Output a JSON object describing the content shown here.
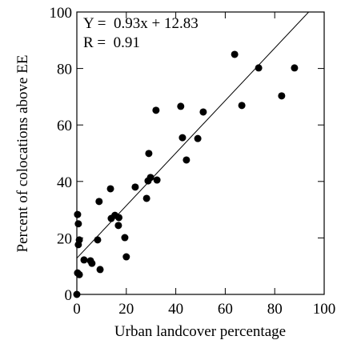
{
  "chart_data": {
    "type": "scatter",
    "xlabel": "Urban landcover percentage",
    "ylabel": "Percent of colocations above EE",
    "annotations": [
      "Y =  0.93x + 12.83",
      "R =  0.91"
    ],
    "fit": {
      "slope": 0.93,
      "intercept": 12.83
    },
    "color": "#000000",
    "x": [
      0.3,
      0.6,
      1,
      0.6,
      0.3,
      1,
      0,
      2.9,
      5.5,
      6.1,
      9,
      8.4,
      9.4,
      13.6,
      13.9,
      15.4,
      17,
      16.8,
      19.4,
      20,
      23.6,
      28.2,
      28.8,
      29.1,
      29.8,
      32.4,
      32,
      42,
      42.7,
      44.3,
      48.9,
      51.1,
      63.8,
      66.7,
      73.5,
      82.8,
      88
    ],
    "y": [
      28.3,
      25,
      19.3,
      17.6,
      7.6,
      7,
      0,
      12.2,
      11.9,
      11,
      32.9,
      19.3,
      8.8,
      37.4,
      26.9,
      28,
      27.2,
      24.4,
      20.1,
      13.3,
      38,
      34,
      40.2,
      49.9,
      41.4,
      40.5,
      65.2,
      66.6,
      55.5,
      47.6,
      55.2,
      64.6,
      85,
      66.9,
      80.2,
      70.3,
      80.2
    ],
    "xlim": [
      0,
      100
    ],
    "ylim": [
      0,
      100
    ],
    "xticks": [
      0,
      20,
      40,
      60,
      80,
      100
    ],
    "yticks": [
      0,
      20,
      40,
      60,
      80,
      100
    ]
  }
}
